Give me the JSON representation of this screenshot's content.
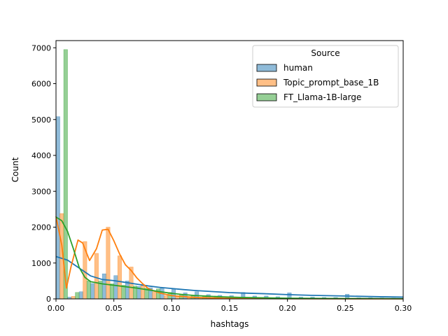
{
  "chart_data": {
    "type": "bar",
    "title": "",
    "xlabel": "hashtags",
    "ylabel": "Count",
    "xlim": [
      0,
      0.3
    ],
    "ylim": [
      0,
      7200
    ],
    "x_ticks": [
      0.0,
      0.05,
      0.1,
      0.15,
      0.2,
      0.25,
      0.3
    ],
    "x_tick_labels": [
      "0.00",
      "0.05",
      "0.10",
      "0.15",
      "0.20",
      "0.25",
      "0.30"
    ],
    "y_ticks": [
      0,
      1000,
      2000,
      3000,
      4000,
      5000,
      6000,
      7000
    ],
    "y_tick_labels": [
      "0",
      "1000",
      "2000",
      "3000",
      "4000",
      "5000",
      "6000",
      "7000"
    ],
    "grid": false,
    "legend": {
      "title": "Source",
      "placement": "top-right"
    },
    "bin_width": 0.01,
    "bin_starts": [
      0.0,
      0.01,
      0.02,
      0.03,
      0.04,
      0.05,
      0.06,
      0.07,
      0.08,
      0.09,
      0.1,
      0.11,
      0.12,
      0.13,
      0.14,
      0.15,
      0.16,
      0.17,
      0.18,
      0.19,
      0.2,
      0.21,
      0.22,
      0.23,
      0.24,
      0.25,
      0.26,
      0.27,
      0.28,
      0.29
    ],
    "series": [
      {
        "name": "human",
        "color": "#1f77b4",
        "values": [
          5080,
          50,
          200,
          430,
          700,
          650,
          500,
          350,
          310,
          300,
          270,
          170,
          200,
          120,
          100,
          90,
          180,
          80,
          80,
          60,
          170,
          50,
          50,
          40,
          40,
          130,
          30,
          30,
          25,
          20
        ],
        "kde": [
          [
            0.0,
            1180
          ],
          [
            0.01,
            1080
          ],
          [
            0.02,
            860
          ],
          [
            0.03,
            640
          ],
          [
            0.04,
            540
          ],
          [
            0.05,
            510
          ],
          [
            0.06,
            460
          ],
          [
            0.07,
            410
          ],
          [
            0.08,
            360
          ],
          [
            0.09,
            320
          ],
          [
            0.1,
            290
          ],
          [
            0.11,
            260
          ],
          [
            0.12,
            235
          ],
          [
            0.13,
            215
          ],
          [
            0.14,
            195
          ],
          [
            0.15,
            175
          ],
          [
            0.16,
            165
          ],
          [
            0.18,
            145
          ],
          [
            0.2,
            120
          ],
          [
            0.22,
            100
          ],
          [
            0.25,
            80
          ],
          [
            0.28,
            60
          ],
          [
            0.3,
            50
          ]
        ]
      },
      {
        "name": "Topic_prompt_base_1B",
        "color": "#ff7f0e",
        "values": [
          2380,
          70,
          1600,
          1270,
          2000,
          1200,
          890,
          400,
          200,
          90,
          60,
          40,
          30,
          20,
          15,
          10,
          10,
          8,
          6,
          5,
          5,
          4,
          3,
          3,
          2,
          2,
          2,
          1,
          1,
          1
        ],
        "kde": [
          [
            0.0,
            2300
          ],
          [
            0.005,
            1500
          ],
          [
            0.009,
            300
          ],
          [
            0.013,
            900
          ],
          [
            0.019,
            1640
          ],
          [
            0.023,
            1560
          ],
          [
            0.029,
            1070
          ],
          [
            0.035,
            1400
          ],
          [
            0.04,
            1920
          ],
          [
            0.045,
            1940
          ],
          [
            0.05,
            1620
          ],
          [
            0.055,
            1250
          ],
          [
            0.06,
            950
          ],
          [
            0.065,
            790
          ],
          [
            0.07,
            580
          ],
          [
            0.075,
            420
          ],
          [
            0.08,
            280
          ],
          [
            0.09,
            160
          ],
          [
            0.1,
            90
          ],
          [
            0.12,
            40
          ],
          [
            0.15,
            15
          ],
          [
            0.2,
            5
          ],
          [
            0.3,
            2
          ]
        ]
      },
      {
        "name": "FT_Llama-1B-large",
        "color": "#2ca02c",
        "values": [
          6950,
          180,
          500,
          500,
          420,
          380,
          360,
          300,
          280,
          180,
          120,
          100,
          90,
          80,
          60,
          50,
          40,
          35,
          30,
          25,
          20,
          18,
          15,
          12,
          10,
          10,
          8,
          6,
          5,
          4
        ],
        "kde": [
          [
            0.0,
            2280
          ],
          [
            0.005,
            2180
          ],
          [
            0.01,
            1880
          ],
          [
            0.015,
            1400
          ],
          [
            0.02,
            880
          ],
          [
            0.025,
            600
          ],
          [
            0.03,
            480
          ],
          [
            0.04,
            420
          ],
          [
            0.05,
            380
          ],
          [
            0.06,
            340
          ],
          [
            0.07,
            300
          ],
          [
            0.08,
            250
          ],
          [
            0.09,
            200
          ],
          [
            0.1,
            155
          ],
          [
            0.11,
            120
          ],
          [
            0.12,
            95
          ],
          [
            0.14,
            60
          ],
          [
            0.16,
            40
          ],
          [
            0.2,
            20
          ],
          [
            0.25,
            10
          ],
          [
            0.3,
            5
          ]
        ]
      }
    ]
  }
}
